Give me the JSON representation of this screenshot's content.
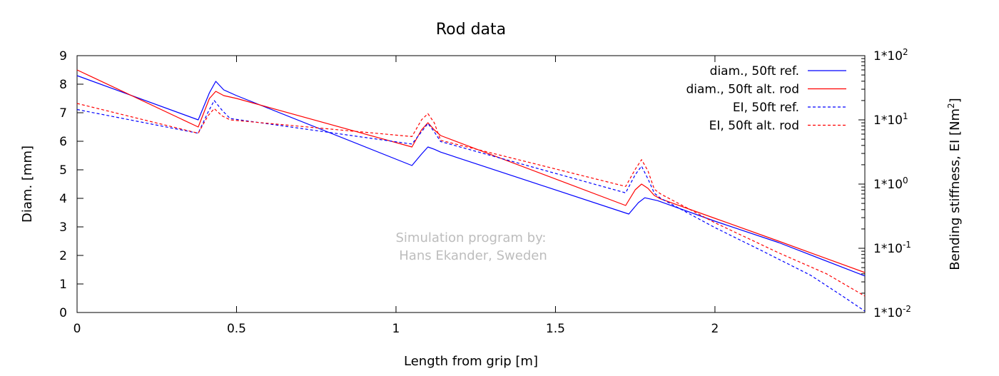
{
  "chart_data": {
    "type": "line",
    "title": "Rod data",
    "xlabel": "Length from grip [m]",
    "ylabel_left": "Diam. [mm]",
    "ylabel_right": "Bending stiffness, EI [Nm",
    "ylabel_right_sup": "2",
    "ylabel_right_close": "]",
    "xlim": [
      0,
      2.47
    ],
    "ylim_left": [
      0,
      9
    ],
    "ylim_right": [
      0.01,
      100
    ],
    "right_scale": "log",
    "xticks": [
      0,
      0.5,
      1,
      1.5,
      2
    ],
    "xtick_labels": [
      "0",
      "0.5",
      "1",
      "1.5",
      "2"
    ],
    "yticks_left": [
      0,
      1,
      2,
      3,
      4,
      5,
      6,
      7,
      8,
      9
    ],
    "ytick_labels_left": [
      "0",
      "1",
      "2",
      "3",
      "4",
      "5",
      "6",
      "7",
      "8",
      "9"
    ],
    "yticks_right": [
      0.01,
      0.1,
      1,
      10,
      100
    ],
    "ytick_labels_right": [
      {
        "base": "1*10",
        "exp": "-2"
      },
      {
        "base": "1*10",
        "exp": "-1"
      },
      {
        "base": "1*10",
        "exp": "0"
      },
      {
        "base": "1*10",
        "exp": "1"
      },
      {
        "base": "1*10",
        "exp": "2"
      }
    ],
    "grid": false,
    "legend_position": "top-right",
    "annotations": [
      "Simulation program by:",
      "Hans Ekander, Sweden"
    ],
    "series": [
      {
        "name": "diam., 50ft ref.",
        "axis": "left",
        "color": "#0000ff",
        "dash": "solid",
        "x": [
          0,
          0.38,
          0.415,
          0.435,
          0.46,
          0.5,
          1.05,
          1.08,
          1.1,
          1.12,
          1.14,
          1.73,
          1.76,
          1.78,
          1.8,
          1.82,
          2.0,
          2.2,
          2.47
        ],
        "y": [
          8.3,
          6.75,
          7.7,
          8.1,
          7.8,
          7.6,
          5.15,
          5.55,
          5.8,
          5.72,
          5.62,
          3.45,
          3.85,
          4.02,
          3.97,
          3.92,
          3.2,
          2.45,
          1.28
        ]
      },
      {
        "name": "diam., 50ft alt. rod",
        "axis": "left",
        "color": "#ff0000",
        "dash": "solid",
        "x": [
          0,
          0.38,
          0.415,
          0.435,
          0.46,
          0.5,
          1.05,
          1.08,
          1.1,
          1.12,
          1.14,
          1.72,
          1.75,
          1.77,
          1.79,
          1.81,
          1.83,
          2.0,
          2.2,
          2.47
        ],
        "y": [
          8.5,
          6.5,
          7.5,
          7.75,
          7.6,
          7.5,
          5.8,
          6.4,
          6.65,
          6.4,
          6.2,
          3.75,
          4.3,
          4.5,
          4.35,
          4.1,
          3.98,
          3.3,
          2.5,
          1.4
        ]
      },
      {
        "name": "EI, 50ft ref.",
        "axis": "right",
        "color": "#0000ff",
        "dash": "dashed",
        "x": [
          0,
          0.38,
          0.41,
          0.43,
          0.455,
          0.48,
          1.05,
          1.08,
          1.1,
          1.12,
          1.14,
          1.72,
          1.75,
          1.77,
          1.79,
          1.81,
          1.83,
          2.0,
          2.15,
          2.3,
          2.4,
          2.47
        ],
        "y": [
          14.5,
          6.2,
          13.0,
          20.0,
          14.0,
          10.5,
          4.2,
          6.5,
          8.8,
          6.5,
          4.6,
          0.73,
          1.4,
          1.9,
          1.2,
          0.72,
          0.6,
          0.21,
          0.09,
          0.038,
          0.018,
          0.0105
        ]
      },
      {
        "name": "EI, 50ft alt. rod",
        "axis": "right",
        "color": "#ff0000",
        "dash": "dashed",
        "x": [
          0,
          0.38,
          0.41,
          0.43,
          0.455,
          0.48,
          1.05,
          1.08,
          1.1,
          1.12,
          1.14,
          1.72,
          1.75,
          1.77,
          1.79,
          1.81,
          1.83,
          2.0,
          2.2,
          2.35,
          2.47
        ],
        "y": [
          18.0,
          6.2,
          11.5,
          15.0,
          11.5,
          10.0,
          5.5,
          10.0,
          12.5,
          9.0,
          4.8,
          0.92,
          1.7,
          2.4,
          1.6,
          0.83,
          0.7,
          0.25,
          0.085,
          0.04,
          0.018
        ]
      }
    ]
  }
}
